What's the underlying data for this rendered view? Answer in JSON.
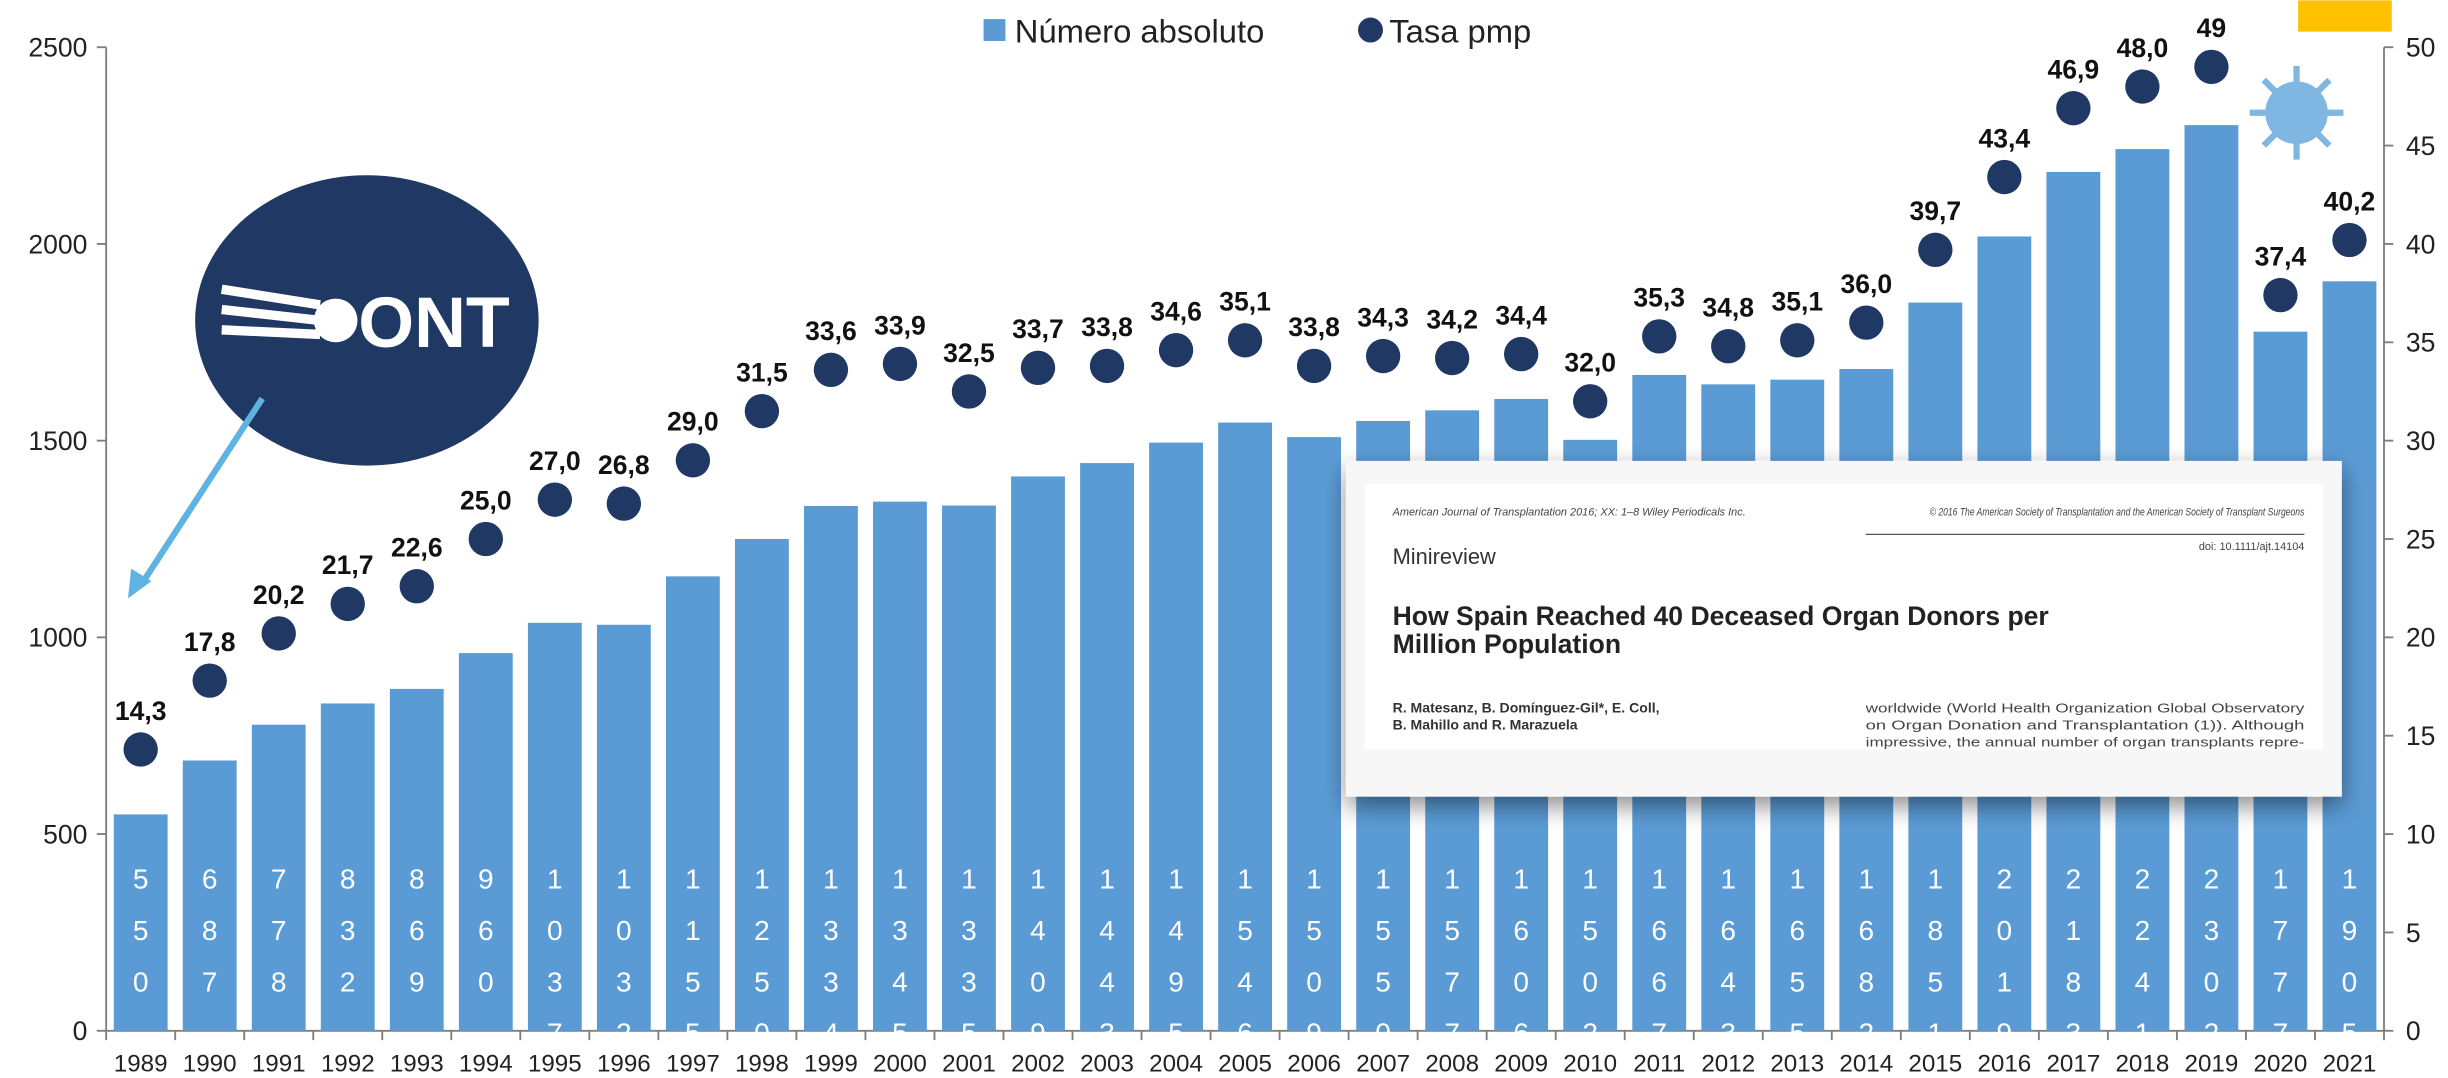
{
  "chart_data": {
    "type": "bar",
    "categories": [
      "1989",
      "1990",
      "1991",
      "1992",
      "1993",
      "1994",
      "1995",
      "1996",
      "1997",
      "1998",
      "1999",
      "2000",
      "2001",
      "2002",
      "2003",
      "2004",
      "2005",
      "2006",
      "2007",
      "2008",
      "2009",
      "2010",
      "2011",
      "2012",
      "2013",
      "2014",
      "2015",
      "2016",
      "2017",
      "2018",
      "2019",
      "2020",
      "2021"
    ],
    "series": [
      {
        "name": "Número absoluto",
        "type": "bar",
        "color": "#5b9bd5",
        "values": [
          550,
          687,
          778,
          832,
          869,
          960,
          1037,
          1032,
          1155,
          1250,
          1334,
          1345,
          1335,
          1409,
          1443,
          1495,
          1546,
          1509,
          1550,
          1577,
          1606,
          1502,
          1667,
          1643,
          1655,
          1682,
          1851,
          2019,
          2183,
          2241,
          2302,
          1777,
          1905
        ]
      },
      {
        "name": "Tasa pmp",
        "type": "scatter",
        "axis": "y2",
        "color": "#1f3864",
        "values": [
          14.3,
          17.8,
          20.2,
          21.7,
          22.6,
          25.0,
          27.0,
          26.8,
          29.0,
          31.5,
          33.6,
          33.9,
          32.5,
          33.7,
          33.8,
          34.6,
          35.1,
          33.8,
          34.3,
          34.2,
          34.4,
          32.0,
          35.3,
          34.8,
          35.1,
          36.0,
          39.7,
          43.4,
          46.9,
          48.0,
          49,
          37.4,
          40.2
        ],
        "value_labels": [
          "14,3",
          "17,8",
          "20,2",
          "21,7",
          "22,6",
          "25,0",
          "27,0",
          "26,8",
          "29,0",
          "31,5",
          "33,6",
          "33,9",
          "32,5",
          "33,7",
          "33,8",
          "34,6",
          "35,1",
          "33,8",
          "34,3",
          "34,2",
          "34,4",
          "32,0",
          "35,3",
          "34,8",
          "35,1",
          "36,0",
          "39,7",
          "43,4",
          "46,9",
          "48,0",
          "49",
          "37,4",
          "40,2"
        ]
      }
    ],
    "ylim": [
      0,
      2500
    ],
    "yticks": [
      0,
      500,
      1000,
      1500,
      2000,
      2500
    ],
    "y2lim": [
      0,
      50
    ],
    "y2ticks": [
      0,
      5,
      10,
      15,
      20,
      25,
      30,
      35,
      40,
      45,
      50
    ],
    "legend": "top",
    "grid": false
  },
  "logo": "ONT",
  "inset": {
    "journal": "American Journal of Transplantation 2016; XX: 1–8 Wiley Periodicals Inc.",
    "copyright": "© 2016 The American Society of Transplantation and the American Society of Transplant Surgeons",
    "doi": "doi: 10.1111/ajt.14104",
    "section": "Minireview",
    "title_line1": "How Spain Reached 40 Deceased Organ Donors per",
    "title_line2": "Million Population",
    "authors_line1": "R. Matesanz, B. Domínguez-Gil*, E. Coll,",
    "authors_line2": "B. Mahillo and R. Marazuela",
    "excerpt_line1": "worldwide (World Health Organization Global Observatory",
    "excerpt_line2": "on Organ Donation and Transplantation (1)). Although",
    "excerpt_line3": "impressive, the annual number of organ transplants repre-"
  }
}
